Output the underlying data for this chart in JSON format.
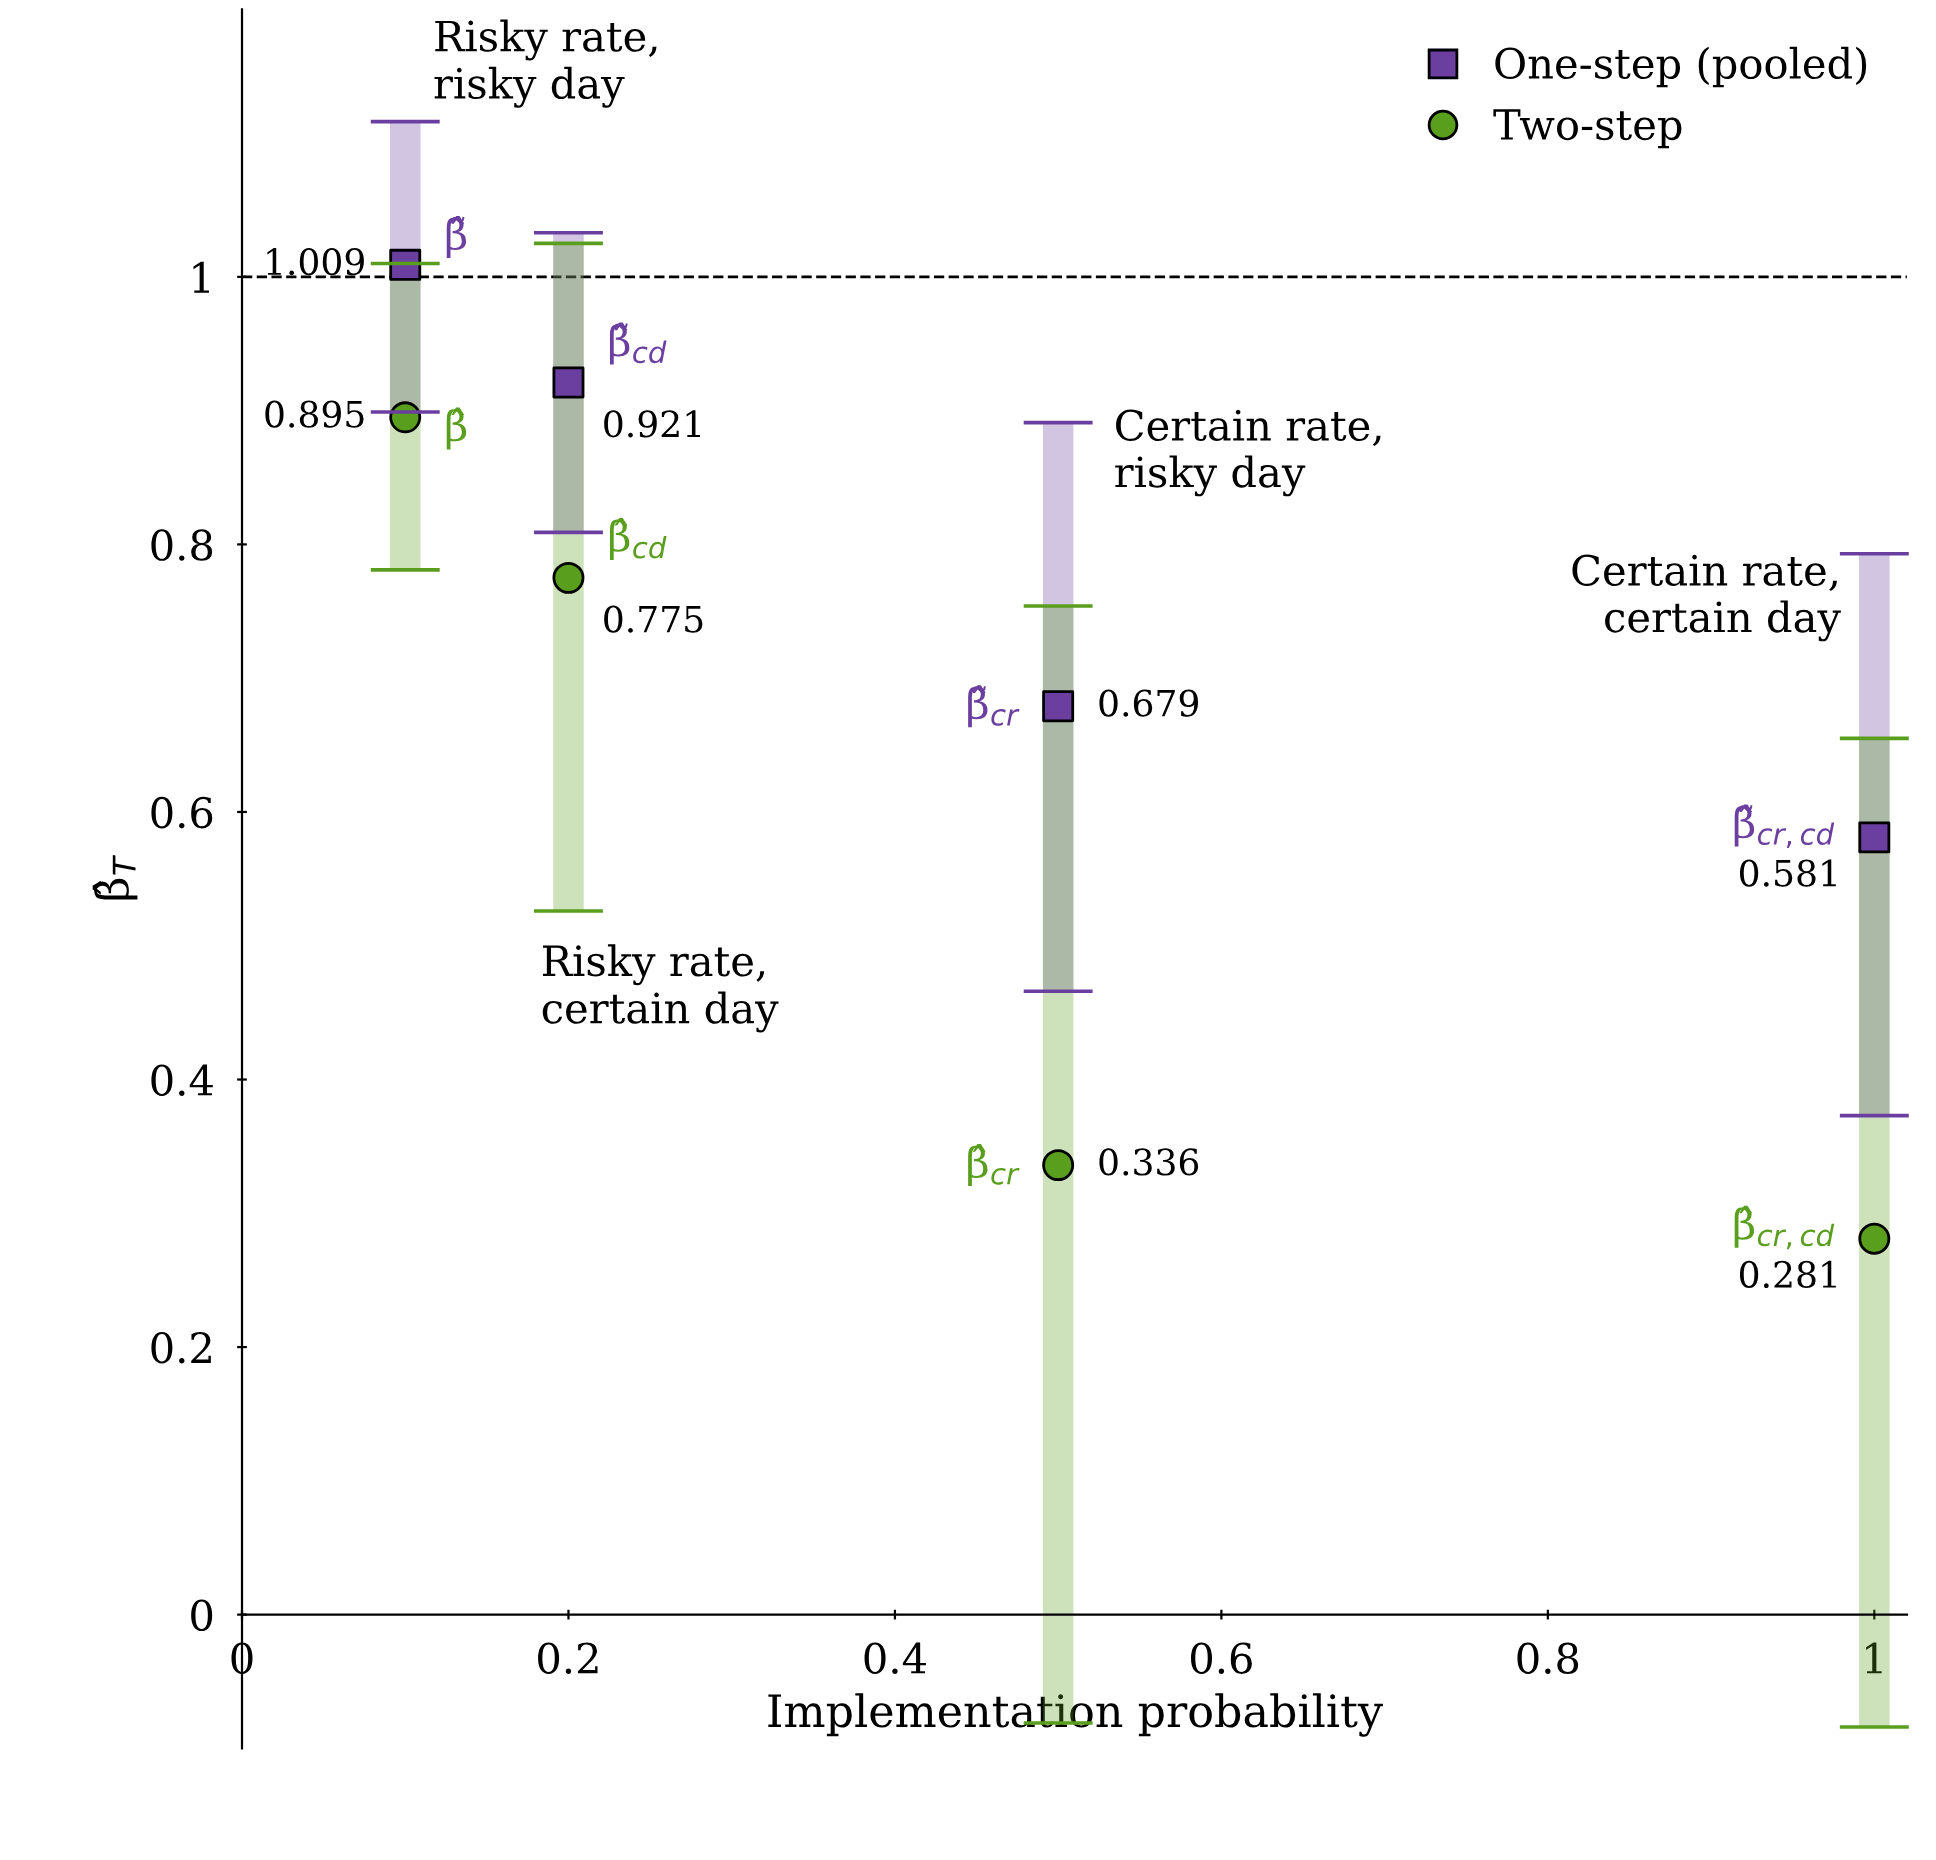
{
  "chart_data": {
    "type": "scatter",
    "x": [
      0.1,
      0.2,
      0.5,
      1
    ],
    "xlabel": "Implementation probability",
    "ylabel": "β̂$_{T}$",
    "series": [
      {
        "name": "One-step (pooled)",
        "color": "#6b3fa0",
        "marker": "square",
        "values": [
          1.009,
          0.921,
          0.679,
          0.581
        ],
        "errors": [
          [
            0.899,
            1.116
          ],
          [
            0.809,
            1.033
          ],
          [
            0.466,
            0.891
          ],
          [
            0.373,
            0.793
          ]
        ]
      },
      {
        "name": "Two-step",
        "color": "#5a9e1e",
        "marker": "circle",
        "values": [
          0.895,
          0.775,
          0.336,
          0.281
        ],
        "errors": [
          [
            0.781,
            1.01
          ],
          [
            0.526,
            1.025
          ],
          [
            -0.081,
            0.754
          ],
          [
            -0.084,
            0.655
          ]
        ]
      }
    ],
    "data_labels": true,
    "xlim": [
      0,
      1.02
    ],
    "ylim": [
      -0.1,
      1.2
    ],
    "xticks": [
      0,
      0.2,
      0.4,
      0.6,
      0.8,
      1
    ],
    "yticks": [
      0,
      0.2,
      0.4,
      0.6,
      0.8,
      1
    ],
    "ref_lines": [
      {
        "axis": "y",
        "value": 1,
        "color": "#000000",
        "line_style": "dashed"
      }
    ],
    "annotations": [
      {
        "text": "Risky rate,\nrisky day",
        "x": 0.1,
        "y": 1.116
      },
      {
        "text": "Risky rate,\ncertain day",
        "x": 0.2,
        "y": 0.526
      },
      {
        "text": "Certain rate,\nrisky day",
        "x": 0.5,
        "y": 0.891
      },
      {
        "text": "Certain rate,\ncertain day",
        "x": 1,
        "y": 0.793
      },
      {
        "text": "β̃̂",
        "x": 0.1,
        "y": 1.009
      },
      {
        "text": "β̂",
        "x": 0.1,
        "y": 0.895
      },
      {
        "text": "β̃̂$_{cd}$",
        "x": 0.2,
        "y": 0.921
      },
      {
        "text": "β̂$_{cd}$",
        "x": 0.2,
        "y": 0.775
      },
      {
        "text": "β̃̂$_{cr}$",
        "x": 0.5,
        "y": 0.679
      },
      {
        "text": "β̂$_{cr}$",
        "x": 0.5,
        "y": 0.336
      },
      {
        "text": "β̃̂$_{cr,cd}$",
        "x": 1,
        "y": 0.581
      },
      {
        "text": "β̂$_{cr,cd}$",
        "x": 1,
        "y": 0.281
      }
    ],
    "grid": false,
    "legend": "top right"
  }
}
